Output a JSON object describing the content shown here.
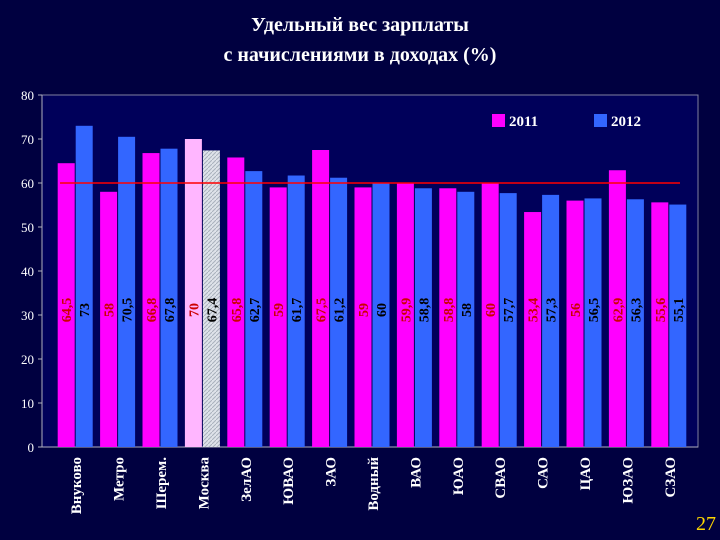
{
  "title": {
    "line1": "Удельный вес зарплаты",
    "line2": "с начислениями в доходах (%)"
  },
  "page_number": "27",
  "colors": {
    "background": "#000040",
    "series_2011": "#ff00ff",
    "series_2011_highlight": "#ffb6ff",
    "series_2012": "#3366ff",
    "series_2012_highlight": "#cfd4dc",
    "reference_line": "#ff0000",
    "label_2011": "#cc0000",
    "label_2012": "#000000"
  },
  "chart_data": {
    "type": "bar",
    "title": "Удельный вес зарплаты с начислениями в доходах (%)",
    "categories": [
      "Внуково",
      "Метро",
      "Шерем.",
      "Москва",
      "ЗелАО",
      "ЮВАО",
      "ЗАО",
      "Водный",
      "ВАО",
      "ЮАО",
      "СВАО",
      "САО",
      "ЦАО",
      "ЮЗАО",
      "СЗАО"
    ],
    "highlight_category": "Москва",
    "series": [
      {
        "name": "2011",
        "values": [
          64.5,
          58,
          66.8,
          70,
          65.8,
          59,
          67.5,
          59,
          59.9,
          58.8,
          60,
          53.4,
          56,
          62.9,
          55.6
        ],
        "labels": [
          "64,5",
          "58",
          "66,8",
          "70",
          "65,8",
          "59",
          "67,5",
          "59",
          "59,9",
          "58,8",
          "60",
          "53,4",
          "56",
          "62,9",
          "55,6"
        ]
      },
      {
        "name": "2012",
        "values": [
          73,
          70.5,
          67.8,
          67.4,
          62.7,
          61.7,
          61.2,
          60,
          58.8,
          58,
          57.7,
          57.3,
          56.5,
          56.3,
          55.1
        ],
        "labels": [
          "73",
          "70,5",
          "67,8",
          "67,4",
          "62,7",
          "61,7",
          "61,2",
          "60",
          "58,8",
          "58",
          "57,7",
          "57,3",
          "56,5",
          "56,3",
          "55,1"
        ]
      }
    ],
    "reference_line": 60,
    "ylim": [
      0,
      80
    ],
    "yticks": [
      0,
      10,
      20,
      30,
      40,
      50,
      60,
      70,
      80
    ],
    "grid": false,
    "legend_position": "top-right",
    "xlabel": "",
    "ylabel": ""
  }
}
